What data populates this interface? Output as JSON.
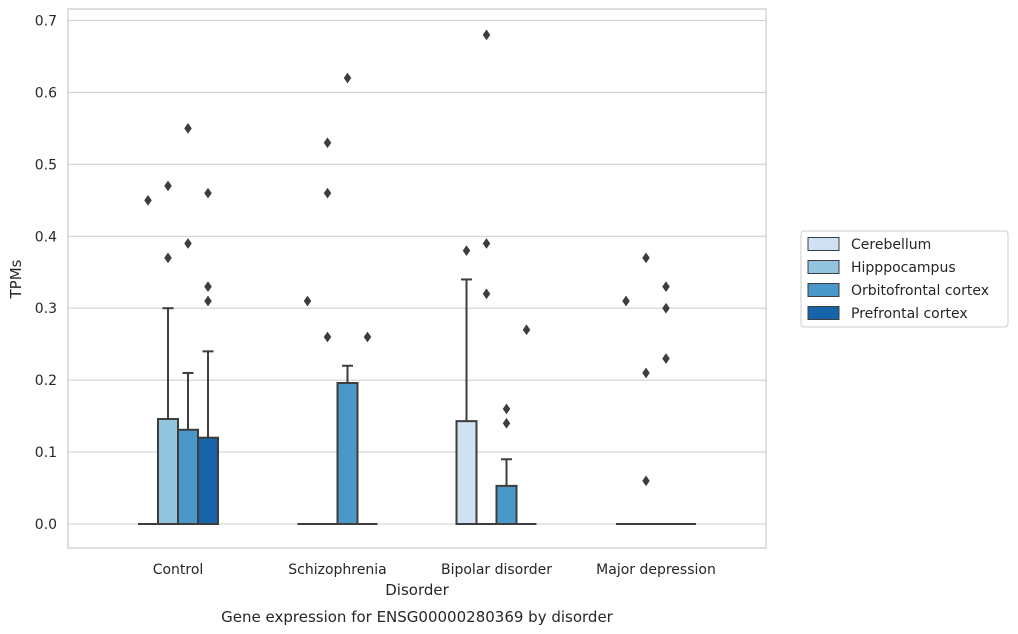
{
  "caption": "Gene expression for ENSG00000280369 by disorder",
  "chart_data": {
    "type": "box",
    "title": "",
    "xlabel": "Disorder",
    "ylabel": "TPMs",
    "ylim": [
      -0.033,
      0.715
    ],
    "yticks": [
      0.0,
      0.1,
      0.2,
      0.3,
      0.4,
      0.5,
      0.6,
      0.7
    ],
    "ytick_labels": [
      "0.0",
      "0.1",
      "0.2",
      "0.3",
      "0.4",
      "0.5",
      "0.6",
      "0.7"
    ],
    "grid": "horizontal",
    "legend_position": "right",
    "categories": [
      "Control",
      "Schizophrenia",
      "Bipolar disorder",
      "Major depression"
    ],
    "series": [
      {
        "name": "Cerebellum",
        "color": "#cfe1f2",
        "boxes": [
          {
            "category": "Control",
            "q1": 0,
            "median": 0,
            "q3": 0,
            "whisker_low": 0,
            "whisker_high": 0,
            "outliers": [
              0.45
            ]
          },
          {
            "category": "Schizophrenia",
            "q1": 0,
            "median": 0,
            "q3": 0,
            "whisker_low": 0,
            "whisker_high": 0,
            "outliers": [
              0.31
            ]
          },
          {
            "category": "Bipolar disorder",
            "q1": 0,
            "median": 0,
            "q3": 0.143,
            "whisker_low": 0,
            "whisker_high": 0.34,
            "outliers": [
              0.38
            ]
          },
          {
            "category": "Major depression",
            "q1": 0,
            "median": 0,
            "q3": 0,
            "whisker_low": 0,
            "whisker_high": 0,
            "outliers": [
              0.31
            ]
          }
        ]
      },
      {
        "name": "Hipppocampus",
        "color": "#93c4de",
        "boxes": [
          {
            "category": "Control",
            "q1": 0,
            "median": 0,
            "q3": 0.146,
            "whisker_low": 0,
            "whisker_high": 0.3,
            "outliers": [
              0.37,
              0.47
            ]
          },
          {
            "category": "Schizophrenia",
            "q1": 0,
            "median": 0,
            "q3": 0,
            "whisker_low": 0,
            "whisker_high": 0,
            "outliers": [
              0.26,
              0.46,
              0.53
            ]
          },
          {
            "category": "Bipolar disorder",
            "q1": 0,
            "median": 0,
            "q3": 0,
            "whisker_low": 0,
            "whisker_high": 0,
            "outliers": [
              0.32,
              0.39,
              0.68
            ]
          },
          {
            "category": "Major depression",
            "q1": 0,
            "median": 0,
            "q3": 0,
            "whisker_low": 0,
            "whisker_high": 0,
            "outliers": [
              0.06,
              0.21,
              0.37
            ]
          }
        ]
      },
      {
        "name": "Orbitofrontal cortex",
        "color": "#4a98c9",
        "boxes": [
          {
            "category": "Control",
            "q1": 0,
            "median": 0,
            "q3": 0.131,
            "whisker_low": 0,
            "whisker_high": 0.21,
            "outliers": [
              0.39,
              0.55
            ]
          },
          {
            "category": "Schizophrenia",
            "q1": 0,
            "median": 0,
            "q3": 0.196,
            "whisker_low": 0,
            "whisker_high": 0.22,
            "outliers": [
              0.62
            ]
          },
          {
            "category": "Bipolar disorder",
            "q1": 0,
            "median": 0,
            "q3": 0.053,
            "whisker_low": 0,
            "whisker_high": 0.09,
            "outliers": [
              0.14,
              0.16
            ]
          },
          {
            "category": "Major depression",
            "q1": 0,
            "median": 0,
            "q3": 0,
            "whisker_low": 0,
            "whisker_high": 0,
            "outliers": [
              0.23,
              0.3,
              0.33
            ]
          }
        ]
      },
      {
        "name": "Prefrontal cortex",
        "color": "#1764ab",
        "boxes": [
          {
            "category": "Control",
            "q1": 0,
            "median": 0,
            "q3": 0.12,
            "whisker_low": 0,
            "whisker_high": 0.24,
            "outliers": [
              0.31,
              0.33,
              0.46
            ]
          },
          {
            "category": "Schizophrenia",
            "q1": 0,
            "median": 0,
            "q3": 0,
            "whisker_low": 0,
            "whisker_high": 0,
            "outliers": [
              0.26
            ]
          },
          {
            "category": "Bipolar disorder",
            "q1": 0,
            "median": 0,
            "q3": 0,
            "whisker_low": 0,
            "whisker_high": 0,
            "outliers": [
              0.27
            ]
          },
          {
            "category": "Major depression",
            "q1": 0,
            "median": 0,
            "q3": 0,
            "whisker_low": 0,
            "whisker_high": 0,
            "outliers": []
          }
        ]
      }
    ]
  }
}
